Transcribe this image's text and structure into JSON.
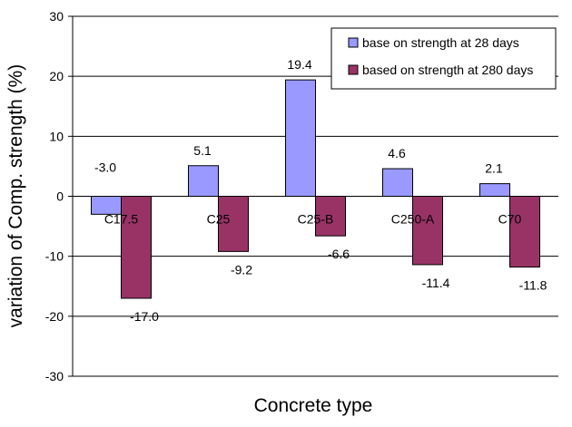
{
  "chart_data": {
    "type": "bar",
    "title": "",
    "xlabel": "Concrete type",
    "ylabel": "variation of Comp. strength (%)",
    "ylim": [
      -30,
      30
    ],
    "yticks": [
      "30",
      "20",
      "10",
      "0",
      "-10",
      "-20",
      "-30"
    ],
    "grid": true,
    "legend_position": "top-right",
    "categories": [
      "C17.5",
      "C25",
      "C25-B",
      "C250-A",
      "C70"
    ],
    "series": [
      {
        "name": "base on strength at 28 days",
        "color": "#9999ff",
        "values": [
          -3.0,
          5.1,
          19.4,
          4.6,
          2.1
        ],
        "labels": [
          "-3.0",
          "5.1",
          "19.4",
          "4.6",
          "2.1"
        ]
      },
      {
        "name": "based on strength at 280 days",
        "color": "#993366",
        "values": [
          -17.0,
          -9.2,
          -6.6,
          -11.4,
          -11.8
        ],
        "labels": [
          "-17.0",
          "-9.2",
          "-6.6",
          "-11.4",
          "-11.8"
        ]
      }
    ]
  }
}
